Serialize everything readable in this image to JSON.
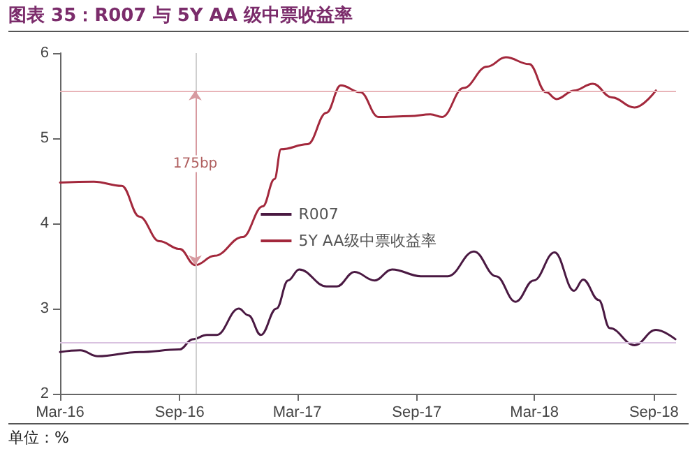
{
  "chart_data": {
    "type": "line",
    "title": "图表 35：R007 与 5Y AA 级中票收益率",
    "annotations": [
      {
        "text": "175bp",
        "x": "2016-09-25",
        "y": 4.7
      },
      "单位：%"
    ],
    "series": [
      {
        "name": "R007",
        "color": "#4a1942",
        "x": [
          "2016-03-01",
          "2016-04-01",
          "2016-04-28",
          "2016-07-01",
          "2016-09-01",
          "2016-09-21",
          "2016-10-13",
          "2016-10-28",
          "2016-12-01",
          "2016-12-16",
          "2017-01-04",
          "2017-01-28",
          "2017-02-15",
          "2017-03-04",
          "2017-04-15",
          "2017-05-01",
          "2017-05-28",
          "2017-06-28",
          "2017-07-25",
          "2017-09-07",
          "2017-10-19",
          "2017-11-28",
          "2018-01-01",
          "2018-01-31",
          "2018-02-28",
          "2018-04-01",
          "2018-05-01",
          "2018-05-15",
          "2018-06-08",
          "2018-06-25",
          "2018-08-02",
          "2018-09-04",
          "2018-10-04"
        ],
        "values": [
          2.49,
          2.51,
          2.44,
          2.49,
          2.52,
          2.64,
          2.69,
          2.69,
          3.0,
          2.92,
          2.69,
          3.0,
          3.33,
          3.46,
          3.26,
          3.26,
          3.43,
          3.33,
          3.46,
          3.38,
          3.38,
          3.67,
          3.38,
          3.08,
          3.33,
          3.66,
          3.21,
          3.34,
          3.1,
          2.77,
          2.57,
          2.75,
          2.64
        ]
      },
      {
        "name": "5Y AA级中票收益率",
        "color": "#a3283c",
        "x": [
          "2016-03-01",
          "2016-04-22",
          "2016-06-04",
          "2016-07-01",
          "2016-08-01",
          "2016-09-01",
          "2016-09-25",
          "2016-10-25",
          "2016-12-07",
          "2017-01-07",
          "2017-01-25",
          "2017-02-04",
          "2017-03-17",
          "2017-04-15",
          "2017-05-07",
          "2017-06-06",
          "2017-07-04",
          "2017-08-22",
          "2017-09-22",
          "2017-10-10",
          "2017-11-12",
          "2017-12-18",
          "2018-01-16",
          "2018-02-21",
          "2018-03-19",
          "2018-04-04",
          "2018-05-01",
          "2018-05-30",
          "2018-06-28",
          "2018-08-02",
          "2018-09-04"
        ],
        "values": [
          4.48,
          4.49,
          4.44,
          4.08,
          3.79,
          3.7,
          3.51,
          3.62,
          3.84,
          4.2,
          4.52,
          4.87,
          4.93,
          5.3,
          5.62,
          5.54,
          5.25,
          5.26,
          5.28,
          5.25,
          5.59,
          5.84,
          5.95,
          5.87,
          5.54,
          5.46,
          5.56,
          5.64,
          5.48,
          5.36,
          5.56
        ]
      }
    ],
    "ref_lines": [
      {
        "axis": "y",
        "value": 5.56,
        "color": "#e8b4b8"
      },
      {
        "axis": "y",
        "value": 2.61,
        "color": "#d9c2e0"
      },
      {
        "axis": "x",
        "value": "2016-09-25",
        "color": "#cfcfcf"
      }
    ],
    "xlim": [
      "2016-03-01",
      "2018-10-05"
    ],
    "xticks": [
      {
        "value": "2016-03-01",
        "label": "Mar-16"
      },
      {
        "value": "2016-09-01",
        "label": "Sep-16"
      },
      {
        "value": "2017-03-01",
        "label": "Mar-17"
      },
      {
        "value": "2017-09-01",
        "label": "Sep-17"
      },
      {
        "value": "2018-03-01",
        "label": "Mar-18"
      },
      {
        "value": "2018-09-01",
        "label": "Sep-18"
      }
    ],
    "ylim": [
      2,
      6
    ],
    "yticks": [
      2,
      3,
      4,
      5,
      6
    ],
    "grid": false,
    "legend": "center",
    "marker": "none",
    "line_style": "solid"
  }
}
